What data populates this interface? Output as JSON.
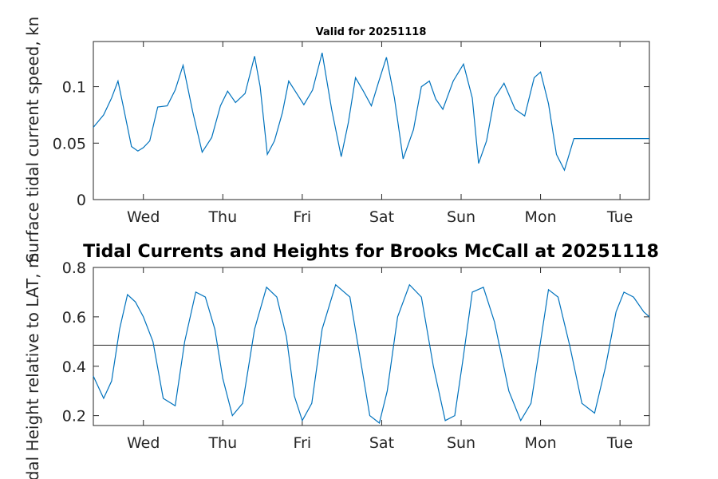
{
  "figure": {
    "top_title": "Valid for 20251118",
    "bottom_title": "Tidal Currents and Heights for Brooks McCall at 20251118"
  },
  "colors": {
    "series": "#0072BD",
    "reference": "#404040",
    "axes": "#262626"
  },
  "chart_data": [
    {
      "type": "line",
      "title": "Valid for 20251118",
      "xlabel": "",
      "ylabel": "Surface tidal current speed, kn",
      "x_ticks": [
        "Wed",
        "Thu",
        "Fri",
        "Sat",
        "Sun",
        "Mon",
        "Tue"
      ],
      "xlim_days": [
        -0.63,
        6.37
      ],
      "ylim": [
        0,
        0.14
      ],
      "y_ticks": [
        "0",
        "0.05",
        "0.1"
      ],
      "y_tick_values": [
        0,
        0.05,
        0.1
      ],
      "grid": false,
      "series": [
        {
          "x_days": [
            -0.63,
            -0.5,
            -0.4,
            -0.32,
            -0.26,
            -0.15,
            -0.07,
            0,
            0.08,
            0.18,
            0.3,
            0.4,
            0.5,
            0.62,
            0.74,
            0.86,
            0.97,
            1.06,
            1.16,
            1.28,
            1.4,
            1.47,
            1.56,
            1.65,
            1.75,
            1.83,
            1.93,
            2.02,
            2.13,
            2.25,
            2.37,
            2.49,
            2.58,
            2.67,
            2.77,
            2.87,
            2.96,
            3.06,
            3.16,
            3.27,
            3.4,
            3.5,
            3.6,
            3.68,
            3.77,
            3.9,
            4.03,
            4.14,
            4.22,
            4.32,
            4.42,
            4.54,
            4.68,
            4.8,
            4.92,
            5.0,
            5.1,
            5.2,
            5.3,
            5.42,
            5.56,
            5.65,
            5.76,
            5.87,
            6.0,
            6.11,
            6.25,
            6.37
          ],
          "values": [
            0.064,
            0.075,
            0.09,
            0.105,
            0.085,
            0.047,
            0.043,
            0.046,
            0.052,
            0.082,
            0.083,
            0.097,
            0.119,
            0.078,
            0.042,
            0.055,
            0.083,
            0.096,
            0.086,
            0.094,
            0.127,
            0.1,
            0.04,
            0.052,
            0.077,
            0.105,
            0.094,
            0.084,
            0.097,
            0.13,
            0.08,
            0.038,
            0.068,
            0.108,
            0.096,
            0.083,
            0.104,
            0.126,
            0.09,
            0.036,
            0.062,
            0.1,
            0.105,
            0.089,
            0.08,
            0.105,
            0.12,
            0.09,
            0.032,
            0.052,
            0.09,
            0.103,
            0.08,
            0.074,
            0.108,
            0.113,
            0.085,
            0.04,
            0.026,
            0.054,
            0.054,
            0.054,
            0.054,
            0.054,
            0.054,
            0.054,
            0.054,
            0.054
          ]
        }
      ]
    },
    {
      "type": "line",
      "title": "Tidal Currents and Heights for Brooks McCall at 20251118",
      "xlabel": "",
      "ylabel": "Tidal Height relative to LAT, m",
      "x_ticks": [
        "Wed",
        "Thu",
        "Fri",
        "Sat",
        "Sun",
        "Mon",
        "Tue"
      ],
      "xlim_days": [
        -0.63,
        6.37
      ],
      "ylim": [
        0.16,
        0.8
      ],
      "y_ticks": [
        "0.2",
        "0.4",
        "0.6",
        "0.8"
      ],
      "y_tick_values": [
        0.2,
        0.4,
        0.6,
        0.8
      ],
      "grid": false,
      "reference_line": 0.485,
      "series": [
        {
          "x_days": [
            -0.63,
            -0.5,
            -0.4,
            -0.3,
            -0.2,
            -0.1,
            0,
            0.12,
            0.25,
            0.4,
            0.52,
            0.66,
            0.78,
            0.9,
            1.0,
            1.12,
            1.25,
            1.4,
            1.55,
            1.68,
            1.8,
            1.9,
            2.0,
            2.12,
            2.25,
            2.42,
            2.6,
            2.72,
            2.85,
            2.97,
            3.07,
            3.2,
            3.35,
            3.5,
            3.65,
            3.8,
            3.92,
            4.02,
            4.14,
            4.28,
            4.42,
            4.6,
            4.75,
            4.88,
            5.0,
            5.1,
            5.22,
            5.37,
            5.52,
            5.68,
            5.82,
            5.95,
            6.05,
            6.17,
            6.3,
            6.37
          ],
          "values": [
            0.36,
            0.27,
            0.34,
            0.55,
            0.69,
            0.66,
            0.6,
            0.5,
            0.27,
            0.24,
            0.5,
            0.7,
            0.68,
            0.55,
            0.35,
            0.2,
            0.25,
            0.55,
            0.72,
            0.68,
            0.52,
            0.28,
            0.18,
            0.25,
            0.55,
            0.73,
            0.68,
            0.45,
            0.2,
            0.17,
            0.3,
            0.6,
            0.73,
            0.68,
            0.4,
            0.18,
            0.2,
            0.42,
            0.7,
            0.72,
            0.58,
            0.3,
            0.18,
            0.25,
            0.5,
            0.71,
            0.68,
            0.48,
            0.25,
            0.21,
            0.4,
            0.62,
            0.7,
            0.68,
            0.62,
            0.6
          ]
        }
      ]
    }
  ]
}
